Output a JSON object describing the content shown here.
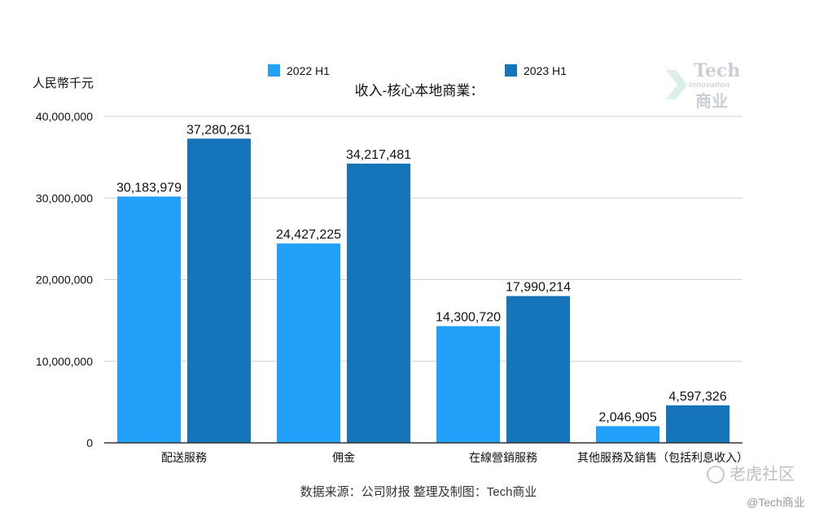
{
  "chart_data": {
    "type": "bar",
    "title": "收入-核心本地商業：",
    "ylabel": "人民幣千元",
    "xlabel": "",
    "categories": [
      "配送服務",
      "佣金",
      "在線營銷服務",
      "其他服務及銷售（包括利息收入）"
    ],
    "series": [
      {
        "name": "2022 H1",
        "color": "#23a0fa",
        "values": [
          30183979,
          24427225,
          14300720,
          2046905
        ]
      },
      {
        "name": "2023 H1",
        "color": "#1675ba",
        "values": [
          37280261,
          34217481,
          17990214,
          4597326
        ]
      }
    ],
    "data_labels": [
      [
        "30,183,979",
        "24,427,225",
        "14,300,720",
        "2,046,905"
      ],
      [
        "37,280,261",
        "34,217,481",
        "17,990,214",
        "4,597,326"
      ]
    ],
    "ylim": [
      0,
      40000000
    ],
    "yticks": [
      0,
      10000000,
      20000000,
      30000000,
      40000000
    ],
    "ytick_labels": [
      "0",
      "10,000,000",
      "20,000,000",
      "30,000,000",
      "40,000,000"
    ],
    "grid": true,
    "legend_position": "top"
  },
  "watermark": {
    "logo_text": "Tech",
    "logo_sub": "Innovation",
    "logo_cn": "商业"
  },
  "footer": {
    "source": "数据来源：公司财报 整理及制图：Tech商业",
    "platform": "老虎社区",
    "handle": "@Tech商业"
  }
}
